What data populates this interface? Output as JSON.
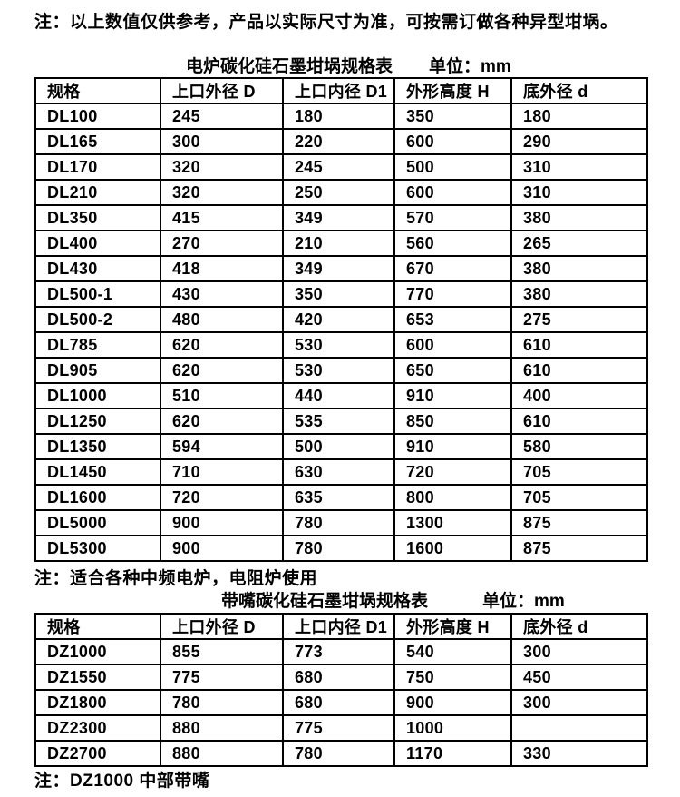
{
  "page": {
    "top_note": "注：以上数值仅供参考，产品以实际尺寸为准，可按需订做各种异型坩埚。"
  },
  "table1": {
    "title": "电炉碳化硅石墨坩埚规格表",
    "unit": "单位：mm",
    "headers": [
      "规格",
      "上口外径 D",
      "上口内径 D1",
      "外形高度 H",
      "底外径 d"
    ],
    "rows": [
      [
        "DL100",
        "245",
        "180",
        "350",
        "180"
      ],
      [
        "DL165",
        "300",
        "220",
        "600",
        "290"
      ],
      [
        "DL170",
        "320",
        "245",
        "500",
        "310"
      ],
      [
        "DL210",
        "320",
        "250",
        "600",
        "310"
      ],
      [
        "DL350",
        "415",
        "349",
        "570",
        "380"
      ],
      [
        "DL400",
        "270",
        "210",
        "560",
        "265"
      ],
      [
        "DL430",
        "418",
        "349",
        "670",
        "380"
      ],
      [
        "DL500-1",
        "430",
        "350",
        "770",
        "380"
      ],
      [
        "DL500-2",
        "480",
        "420",
        "653",
        "275"
      ],
      [
        "DL785",
        "620",
        "530",
        "600",
        "610"
      ],
      [
        "DL905",
        "620",
        "530",
        "650",
        "610"
      ],
      [
        "DL1000",
        "510",
        "440",
        "910",
        "400"
      ],
      [
        "DL1250",
        "620",
        "535",
        "850",
        "610"
      ],
      [
        "DL1350",
        "594",
        "500",
        "910",
        "580"
      ],
      [
        "DL1450",
        "710",
        "630",
        "720",
        "705"
      ],
      [
        "DL1600",
        "720",
        "635",
        "800",
        "705"
      ],
      [
        "DL5000",
        "900",
        "780",
        "1300",
        "875"
      ],
      [
        "DL5300",
        "900",
        "780",
        "1600",
        "875"
      ]
    ],
    "note": "注：适合各种中频电炉，电阻炉使用"
  },
  "table2": {
    "title": "带嘴碳化硅石墨坩埚规格表",
    "unit": "单位：mm",
    "headers": [
      "规格",
      "上口外径 D",
      "上口内径 D1",
      "外形高度 H",
      "底外径 d"
    ],
    "rows": [
      [
        "DZ1000",
        "855",
        "773",
        "540",
        "300"
      ],
      [
        "DZ1550",
        "775",
        "680",
        "750",
        "450"
      ],
      [
        "DZ1800",
        "780",
        "680",
        "900",
        "300"
      ],
      [
        "DZ2300",
        "880",
        "775",
        "1000",
        ""
      ],
      [
        "DZ2700",
        "880",
        "780",
        "1170",
        "330"
      ]
    ],
    "note": "注：DZ1000 中部带嘴"
  }
}
